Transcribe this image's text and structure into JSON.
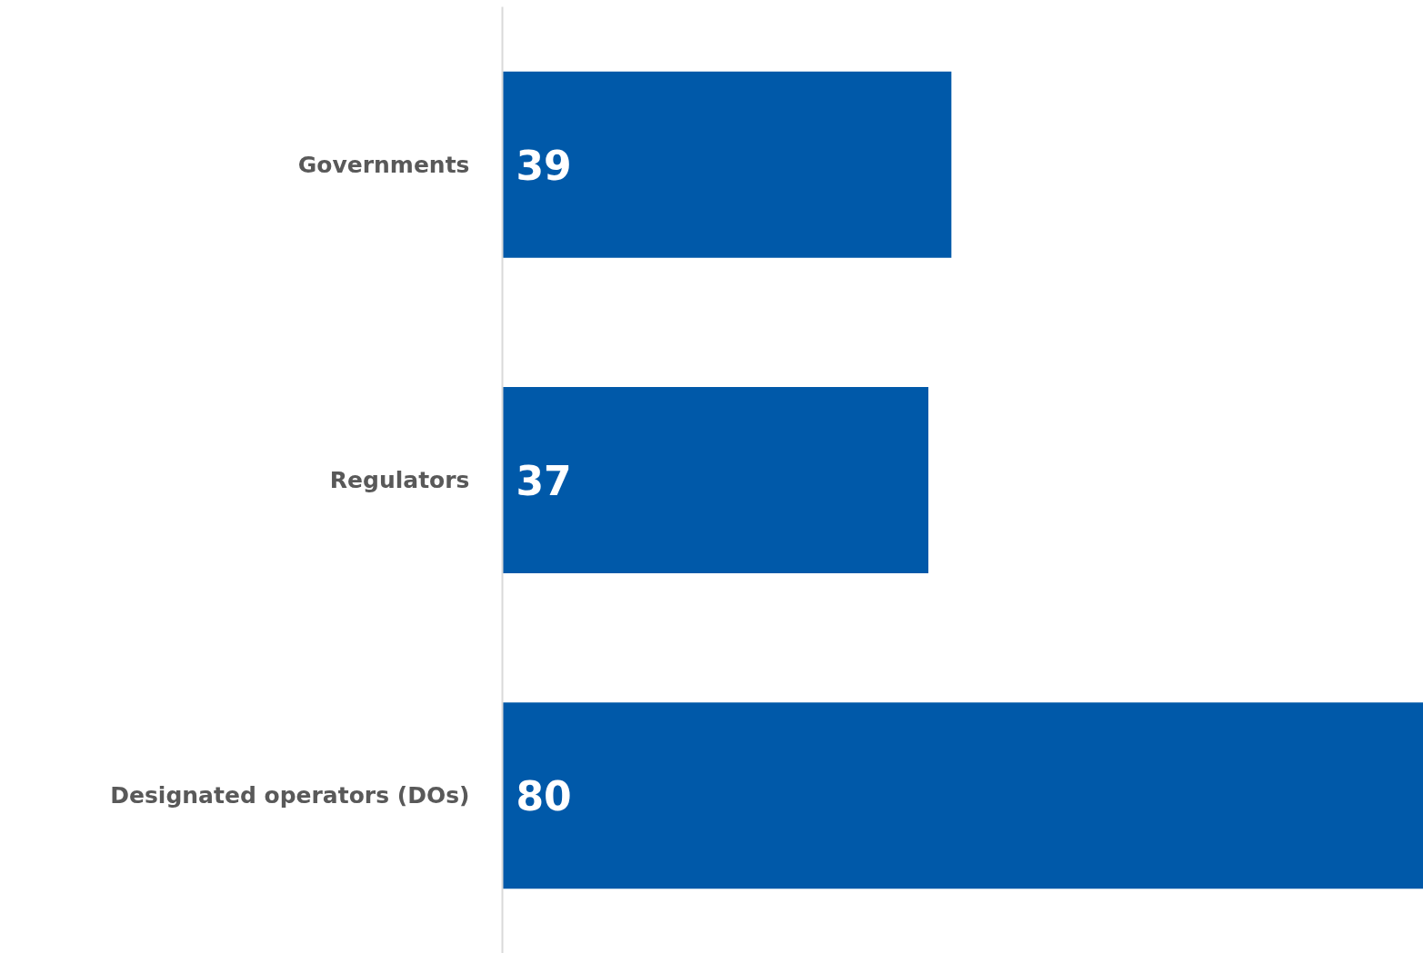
{
  "chart_data": {
    "type": "bar",
    "orientation": "horizontal",
    "categories": [
      "Governments",
      "Regulators",
      "Designated operators (DOs)"
    ],
    "values": [
      39,
      37,
      80
    ],
    "color": "#0059a9",
    "data_labels": true
  }
}
